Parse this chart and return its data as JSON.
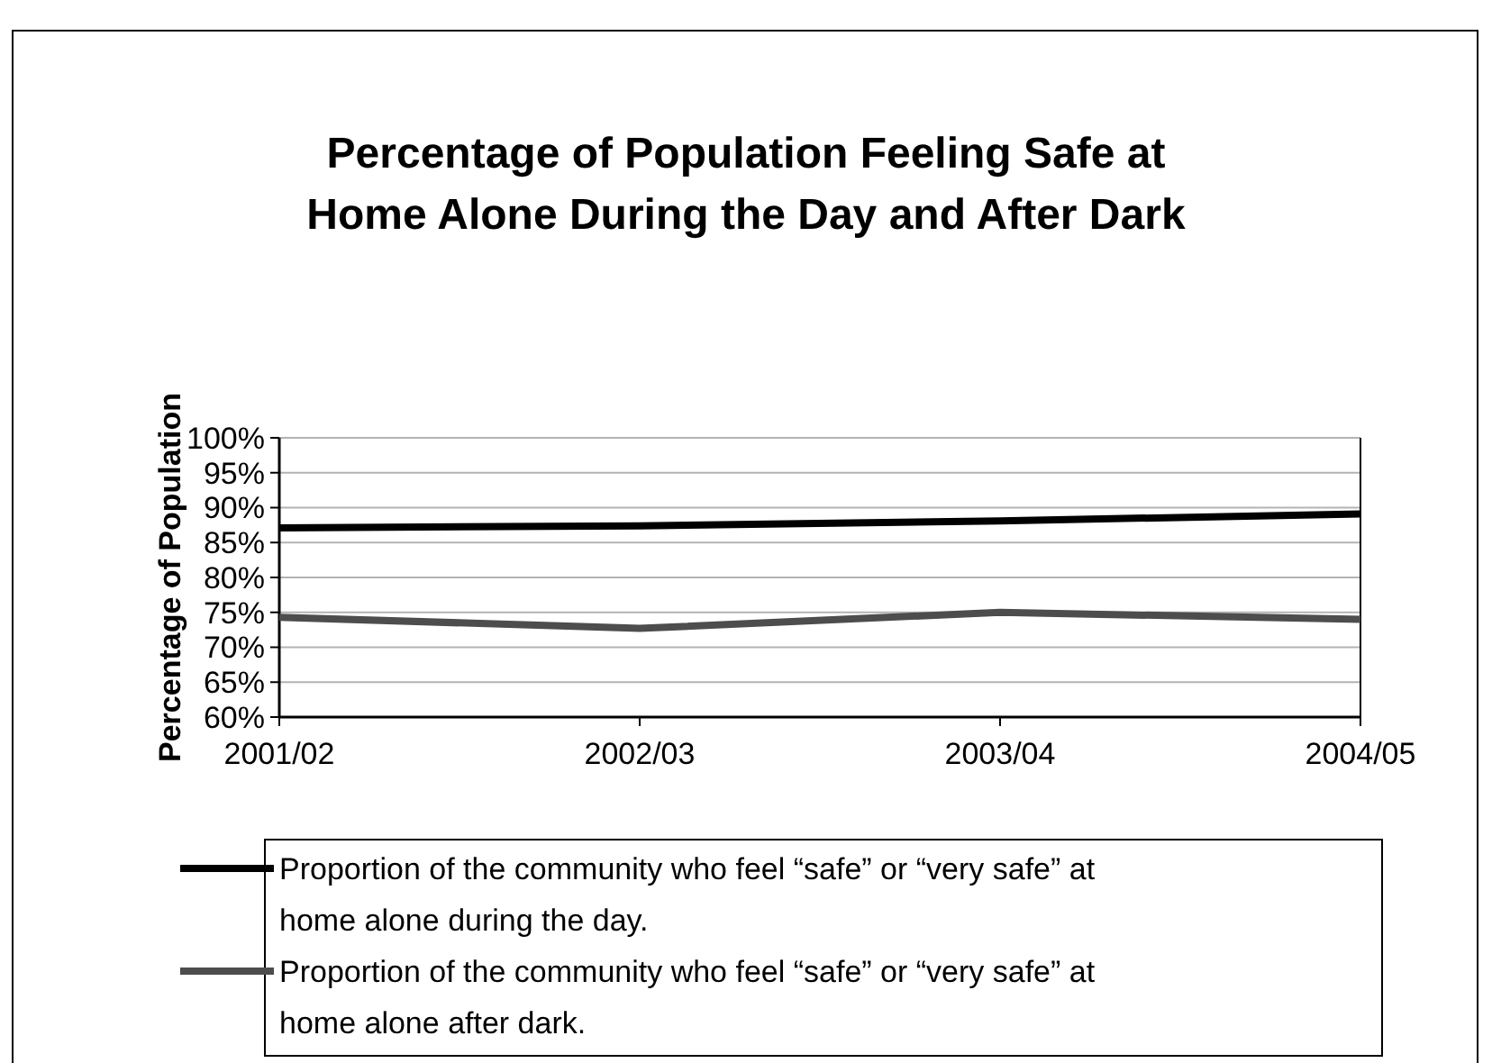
{
  "chart_data": {
    "type": "line",
    "title": "Percentage of Population Feeling Safe at Home Alone During the Day and After Dark",
    "ylabel": "Percentage of Population",
    "categories": [
      "2001/02",
      "2002/03",
      "2003/04",
      "2004/05"
    ],
    "series": [
      {
        "name": "Proportion of the community who feel “safe” or “very safe” at home alone during the day.",
        "color": "#000000",
        "values": [
          87.1,
          87.4,
          88.1,
          89.1
        ]
      },
      {
        "name": "Proportion of the community who feel “safe” or “very safe” at home alone after dark.",
        "color": "#4d4d4d",
        "values": [
          74.3,
          72.7,
          75.0,
          74.0
        ]
      }
    ],
    "ylim": [
      60,
      100
    ],
    "yticks": [
      {
        "value": 60,
        "label": "60%"
      },
      {
        "value": 65,
        "label": "65%"
      },
      {
        "value": 70,
        "label": "70%"
      },
      {
        "value": 75,
        "label": "75%"
      },
      {
        "value": 80,
        "label": "80%"
      },
      {
        "value": 85,
        "label": "85%"
      },
      {
        "value": 90,
        "label": "90%"
      },
      {
        "value": 95,
        "label": "95%"
      },
      {
        "value": 100,
        "label": "100%"
      }
    ],
    "grid": "y",
    "legend": "bottom",
    "marker": "none",
    "line_style": "solid"
  }
}
